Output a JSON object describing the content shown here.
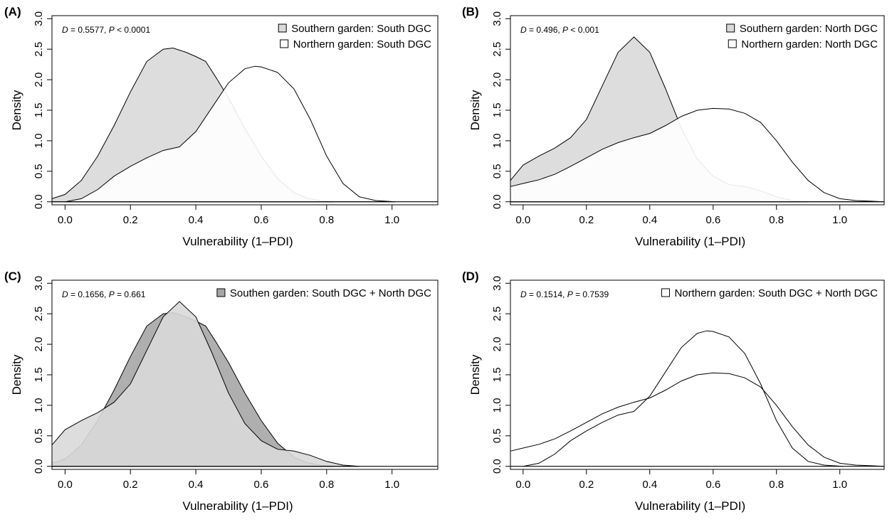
{
  "chart_data": [
    {
      "panel_label": "(A)",
      "type": "area",
      "xlabel": "Vulnerability (1–PDI)",
      "ylabel": "Density",
      "xlim": [
        -0.04,
        1.14
      ],
      "ylim": [
        -0.05,
        3.05
      ],
      "xticks": [
        0.0,
        0.2,
        0.4,
        0.6,
        0.8,
        1.0
      ],
      "xtick_labels": [
        "0.0",
        "0.2",
        "0.4",
        "0.6",
        "0.8",
        "1.0"
      ],
      "yticks": [
        0.0,
        0.5,
        1.0,
        1.5,
        2.0,
        2.5,
        3.0
      ],
      "ytick_labels": [
        "0.0",
        "0.5",
        "1.0",
        "1.5",
        "2.0",
        "2.5",
        "3.0"
      ],
      "stat_D_label": "D",
      "stat_D_value": " = 0.5577, ",
      "stat_P_label": "P",
      "stat_P_value": " < 0.0001",
      "legend_position": "top-right",
      "series": [
        {
          "name": "Southern garden: South DGC",
          "fill": "#d9d9d9",
          "x": [
            -0.04,
            0.0,
            0.05,
            0.1,
            0.15,
            0.2,
            0.25,
            0.3,
            0.33,
            0.37,
            0.4,
            0.43,
            0.46,
            0.5,
            0.55,
            0.6,
            0.65,
            0.7,
            0.74,
            0.78,
            0.82
          ],
          "y": [
            0.05,
            0.12,
            0.35,
            0.75,
            1.25,
            1.8,
            2.3,
            2.5,
            2.52,
            2.45,
            2.38,
            2.3,
            2.05,
            1.7,
            1.2,
            0.75,
            0.38,
            0.15,
            0.06,
            0.02,
            0.0
          ]
        },
        {
          "name": "Northern garden: South DGC",
          "fill": "#ffffff",
          "x": [
            0.0,
            0.05,
            0.1,
            0.15,
            0.2,
            0.25,
            0.3,
            0.35,
            0.4,
            0.45,
            0.5,
            0.55,
            0.58,
            0.6,
            0.65,
            0.7,
            0.75,
            0.8,
            0.85,
            0.9,
            0.95,
            1.01
          ],
          "y": [
            0.0,
            0.05,
            0.2,
            0.42,
            0.58,
            0.72,
            0.84,
            0.9,
            1.15,
            1.55,
            1.95,
            2.18,
            2.22,
            2.21,
            2.12,
            1.85,
            1.35,
            0.75,
            0.3,
            0.08,
            0.02,
            0.0
          ]
        }
      ]
    },
    {
      "panel_label": "(B)",
      "type": "area",
      "xlabel": "Vulnerability (1–PDI)",
      "ylabel": "Density",
      "xlim": [
        -0.04,
        1.14
      ],
      "ylim": [
        -0.05,
        3.05
      ],
      "xticks": [
        0.0,
        0.2,
        0.4,
        0.6,
        0.8,
        1.0
      ],
      "xtick_labels": [
        "0.0",
        "0.2",
        "0.4",
        "0.6",
        "0.8",
        "1.0"
      ],
      "yticks": [
        0.0,
        0.5,
        1.0,
        1.5,
        2.0,
        2.5,
        3.0
      ],
      "ytick_labels": [
        "0.0",
        "0.5",
        "1.0",
        "1.5",
        "2.0",
        "2.5",
        "3.0"
      ],
      "stat_D_label": "D",
      "stat_D_value": " = 0.496, ",
      "stat_P_label": "P",
      "stat_P_value": " < 0.001",
      "legend_position": "top-right",
      "series": [
        {
          "name": "Southern garden: North DGC",
          "fill": "#d9d9d9",
          "x": [
            -0.04,
            0.0,
            0.05,
            0.1,
            0.15,
            0.2,
            0.25,
            0.3,
            0.35,
            0.4,
            0.45,
            0.5,
            0.55,
            0.6,
            0.65,
            0.7,
            0.75,
            0.8,
            0.85,
            0.9
          ],
          "y": [
            0.35,
            0.6,
            0.75,
            0.88,
            1.05,
            1.35,
            1.9,
            2.45,
            2.7,
            2.45,
            1.85,
            1.2,
            0.7,
            0.42,
            0.28,
            0.25,
            0.18,
            0.08,
            0.02,
            0.0
          ]
        },
        {
          "name": "Northern garden: North DGC",
          "fill": "#ffffff",
          "x": [
            -0.04,
            0.0,
            0.05,
            0.1,
            0.15,
            0.2,
            0.25,
            0.3,
            0.35,
            0.4,
            0.45,
            0.5,
            0.55,
            0.6,
            0.65,
            0.7,
            0.75,
            0.8,
            0.85,
            0.9,
            0.95,
            1.0,
            1.05,
            1.1,
            1.14
          ],
          "y": [
            0.25,
            0.3,
            0.36,
            0.45,
            0.58,
            0.72,
            0.86,
            0.97,
            1.05,
            1.12,
            1.25,
            1.4,
            1.5,
            1.53,
            1.52,
            1.45,
            1.3,
            1.0,
            0.65,
            0.35,
            0.15,
            0.05,
            0.02,
            0.01,
            0.0
          ]
        }
      ]
    },
    {
      "panel_label": "(C)",
      "type": "area",
      "xlabel": "Vulnerability (1–PDI)",
      "ylabel": "Density",
      "xlim": [
        -0.04,
        1.14
      ],
      "ylim": [
        -0.05,
        3.05
      ],
      "xticks": [
        0.0,
        0.2,
        0.4,
        0.6,
        0.8,
        1.0
      ],
      "xtick_labels": [
        "0.0",
        "0.2",
        "0.4",
        "0.6",
        "0.8",
        "1.0"
      ],
      "yticks": [
        0.0,
        0.5,
        1.0,
        1.5,
        2.0,
        2.5,
        3.0
      ],
      "ytick_labels": [
        "0.0",
        "0.5",
        "1.0",
        "1.5",
        "2.0",
        "2.5",
        "3.0"
      ],
      "stat_D_label": "D",
      "stat_D_value": " = 0.1656, ",
      "stat_P_label": "P",
      "stat_P_value": " = 0.661",
      "legend_position": "top-right",
      "series": [
        {
          "name": "Southen garden: South DGC + North DGC",
          "fill": "#a6a6a6",
          "x": [
            -0.04,
            0.0,
            0.05,
            0.1,
            0.15,
            0.2,
            0.25,
            0.3,
            0.33,
            0.37,
            0.4,
            0.43,
            0.46,
            0.5,
            0.55,
            0.6,
            0.65,
            0.7,
            0.74,
            0.78,
            0.82
          ],
          "y": [
            0.05,
            0.12,
            0.35,
            0.75,
            1.25,
            1.8,
            2.3,
            2.5,
            2.52,
            2.45,
            2.38,
            2.3,
            2.05,
            1.7,
            1.2,
            0.75,
            0.38,
            0.15,
            0.06,
            0.02,
            0.0
          ]
        },
        {
          "fill": "#d9d9d9",
          "x": [
            -0.04,
            0.0,
            0.05,
            0.1,
            0.15,
            0.2,
            0.25,
            0.3,
            0.35,
            0.4,
            0.45,
            0.5,
            0.55,
            0.6,
            0.65,
            0.7,
            0.75,
            0.8,
            0.85,
            0.9
          ],
          "y": [
            0.35,
            0.6,
            0.75,
            0.88,
            1.05,
            1.35,
            1.9,
            2.45,
            2.7,
            2.45,
            1.85,
            1.2,
            0.7,
            0.42,
            0.28,
            0.25,
            0.18,
            0.08,
            0.02,
            0.0
          ]
        }
      ]
    },
    {
      "panel_label": "(D)",
      "type": "line",
      "xlabel": "Vulnerability (1–PDI)",
      "ylabel": "Density",
      "xlim": [
        -0.04,
        1.14
      ],
      "ylim": [
        -0.05,
        3.05
      ],
      "xticks": [
        0.0,
        0.2,
        0.4,
        0.6,
        0.8,
        1.0
      ],
      "xtick_labels": [
        "0.0",
        "0.2",
        "0.4",
        "0.6",
        "0.8",
        "1.0"
      ],
      "yticks": [
        0.0,
        0.5,
        1.0,
        1.5,
        2.0,
        2.5,
        3.0
      ],
      "ytick_labels": [
        "0.0",
        "0.5",
        "1.0",
        "1.5",
        "2.0",
        "2.5",
        "3.0"
      ],
      "stat_D_label": "D",
      "stat_D_value": " = 0.1514, ",
      "stat_P_label": "P",
      "stat_P_value": " = 0.7539",
      "legend_position": "top-right",
      "series": [
        {
          "name": "Northern garden: South DGC + North DGC",
          "fill": "none",
          "x": [
            0.0,
            0.05,
            0.1,
            0.15,
            0.2,
            0.25,
            0.3,
            0.35,
            0.4,
            0.45,
            0.5,
            0.55,
            0.58,
            0.6,
            0.65,
            0.7,
            0.75,
            0.8,
            0.85,
            0.9,
            0.95,
            1.01
          ],
          "y": [
            0.0,
            0.05,
            0.2,
            0.42,
            0.58,
            0.72,
            0.84,
            0.9,
            1.15,
            1.55,
            1.95,
            2.18,
            2.22,
            2.21,
            2.12,
            1.85,
            1.35,
            0.75,
            0.3,
            0.08,
            0.02,
            0.0
          ]
        },
        {
          "fill": "none",
          "x": [
            -0.04,
            0.0,
            0.05,
            0.1,
            0.15,
            0.2,
            0.25,
            0.3,
            0.35,
            0.4,
            0.45,
            0.5,
            0.55,
            0.6,
            0.65,
            0.7,
            0.75,
            0.8,
            0.85,
            0.9,
            0.95,
            1.0,
            1.05,
            1.1,
            1.14
          ],
          "y": [
            0.25,
            0.3,
            0.36,
            0.45,
            0.58,
            0.72,
            0.86,
            0.97,
            1.05,
            1.12,
            1.25,
            1.4,
            1.5,
            1.53,
            1.52,
            1.45,
            1.3,
            1.0,
            0.65,
            0.35,
            0.15,
            0.05,
            0.02,
            0.01,
            0.0
          ]
        }
      ]
    }
  ]
}
